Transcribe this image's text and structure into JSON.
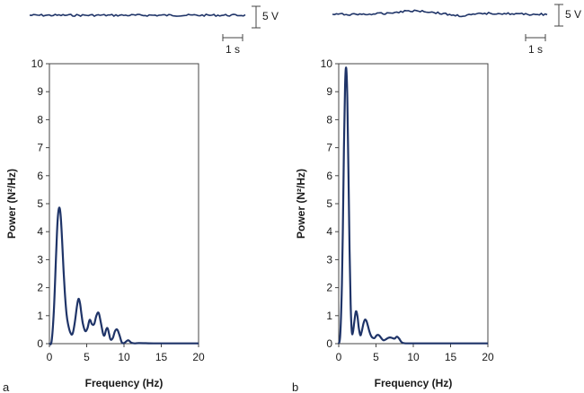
{
  "colors": {
    "trace": "#1f3468",
    "axis": "#444444",
    "text": "#1a1a1a"
  },
  "chart_data": [
    {
      "panel": "a",
      "type": "line",
      "title": "",
      "xlabel": "Frequency (Hz)",
      "ylabel": "Power (N²/Hz)",
      "xlim": [
        0,
        20
      ],
      "ylim": [
        0,
        10
      ],
      "xticks": [
        "0",
        "5",
        "10",
        "15",
        "20"
      ],
      "yticks": [
        "0",
        "1",
        "2",
        "3",
        "4",
        "5",
        "6",
        "7",
        "8",
        "9",
        "10"
      ],
      "series": [
        {
          "name": "Power spectrum a",
          "x": [
            0,
            0.3,
            0.6,
            0.9,
            1.1,
            1.3,
            1.5,
            1.7,
            1.9,
            2.1,
            2.3,
            2.5,
            2.8,
            3.1,
            3.4,
            3.7,
            3.9,
            4.1,
            4.3,
            4.5,
            4.8,
            5.1,
            5.4,
            5.7,
            6.0,
            6.3,
            6.6,
            6.9,
            7.2,
            7.4,
            7.6,
            7.8,
            8.0,
            8.2,
            8.5,
            8.8,
            9.1,
            9.4,
            9.7,
            10.0,
            10.3,
            10.6,
            11.0,
            11.5,
            12,
            14,
            16,
            18,
            20
          ],
          "y": [
            0,
            0.1,
            1.2,
            3.2,
            4.4,
            4.85,
            4.6,
            3.7,
            2.6,
            1.7,
            1.05,
            0.7,
            0.4,
            0.35,
            0.75,
            1.35,
            1.6,
            1.45,
            1.05,
            0.7,
            0.45,
            0.55,
            0.85,
            0.7,
            0.7,
            1.0,
            1.1,
            0.75,
            0.35,
            0.3,
            0.5,
            0.55,
            0.35,
            0.15,
            0.2,
            0.45,
            0.5,
            0.3,
            0.05,
            0.02,
            0.08,
            0.12,
            0.03,
            0.01,
            0.02,
            0.01,
            0.01,
            0.01,
            0.01
          ]
        }
      ],
      "raw_signal": {
        "scale_voltage": "5 V",
        "scale_time": "1 s"
      }
    },
    {
      "panel": "b",
      "type": "line",
      "title": "",
      "xlabel": "Frequency (Hz)",
      "ylabel": "Power (N²/Hz)",
      "xlim": [
        0,
        20
      ],
      "ylim": [
        0,
        10
      ],
      "xticks": [
        "0",
        "5",
        "10",
        "15",
        "20"
      ],
      "yticks": [
        "0",
        "1",
        "2",
        "3",
        "4",
        "5",
        "6",
        "7",
        "8",
        "9",
        "10"
      ],
      "series": [
        {
          "name": "Power spectrum b",
          "x": [
            0,
            0.2,
            0.4,
            0.55,
            0.7,
            0.85,
            1.0,
            1.15,
            1.3,
            1.45,
            1.6,
            1.75,
            1.9,
            2.1,
            2.3,
            2.5,
            2.7,
            2.9,
            3.1,
            3.3,
            3.5,
            3.7,
            3.9,
            4.1,
            4.3,
            4.5,
            4.8,
            5.1,
            5.4,
            5.7,
            6.0,
            6.3,
            6.6,
            6.9,
            7.2,
            7.5,
            7.8,
            8.1,
            8.4,
            8.7,
            9,
            10,
            12,
            14,
            16,
            18,
            20
          ],
          "y": [
            0,
            0.3,
            1.8,
            4.0,
            7.0,
            9.2,
            9.85,
            8.8,
            6.2,
            3.4,
            1.4,
            0.45,
            0.4,
            0.8,
            1.15,
            1.0,
            0.55,
            0.3,
            0.45,
            0.7,
            0.85,
            0.82,
            0.65,
            0.45,
            0.3,
            0.22,
            0.2,
            0.3,
            0.3,
            0.2,
            0.12,
            0.15,
            0.2,
            0.22,
            0.2,
            0.18,
            0.25,
            0.18,
            0.06,
            0.02,
            0.01,
            0.01,
            0.01,
            0.01,
            0.01,
            0.01,
            0.01
          ]
        }
      ],
      "raw_signal": {
        "scale_voltage": "5 V",
        "scale_time": "1 s"
      }
    }
  ]
}
